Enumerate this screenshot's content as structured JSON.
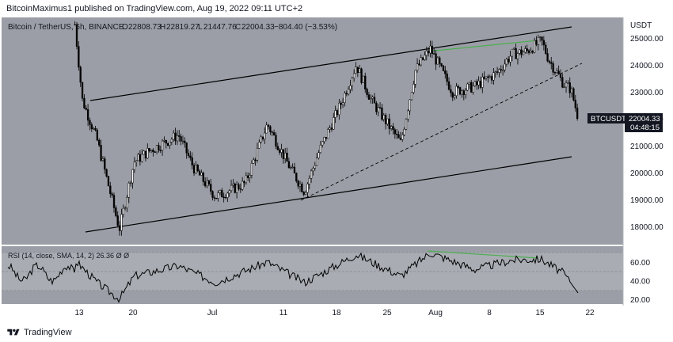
{
  "header": {
    "publisher_line": "BitcoinMaximus1 published on TradingView.com, Aug 19, 2022 09:11 UTC+2"
  },
  "legend": {
    "symbol": "Bitcoin / TetherUS, 6h, BINANCE",
    "open_label": "O",
    "open": "22808.73",
    "high_label": "H",
    "high": "22819.27",
    "low_label": "L",
    "low": "21447.76",
    "close_label": "C",
    "close": "22004.33",
    "change": "−804.40 (−3.53%)"
  },
  "price_axis": {
    "currency": "USDT",
    "ticks": [
      "25000.00",
      "24000.00",
      "23000.00",
      "22000.00",
      "21000.00",
      "20000.00",
      "19000.00",
      "18000.00"
    ]
  },
  "last_price_tag": {
    "symbol": "BTCUSDT",
    "price": "22004.33",
    "countdown": "04:48:15"
  },
  "rsi_panel": {
    "legend": "RSI (14, close, SMA, 14, 2)  26.36  Ø  Ø",
    "ticks": [
      "60.00",
      "40.00",
      "20.00"
    ]
  },
  "time_axis": {
    "ticks": [
      "13",
      "20",
      "Jul",
      "11",
      "18",
      "25",
      "Aug",
      "8",
      "15",
      "22"
    ]
  },
  "footer": {
    "brand": "TradingView"
  },
  "colors": {
    "panel_bg": "#9b9ea6",
    "rsi_band": "#a9acb3",
    "divergence": "#4caf50",
    "line": "#000000"
  },
  "chart_data": {
    "type": "candlestick",
    "title": "Bitcoin / TetherUS, 6h, BINANCE",
    "ylabel": "USDT",
    "ylim": [
      17500,
      25700
    ],
    "annotations": [
      "ascending parallel channel",
      "dashed ascending support line",
      "bearish divergence (green lines)"
    ],
    "price_path": [
      {
        "t": "Jun 12",
        "close": 25500
      },
      {
        "t": "Jun 13",
        "close": 22700
      },
      {
        "t": "Jun 15",
        "close": 21200
      },
      {
        "t": "Jun 18",
        "close": 17900
      },
      {
        "t": "Jun 20",
        "close": 20400
      },
      {
        "t": "Jun 22",
        "close": 20800
      },
      {
        "t": "Jun 26",
        "close": 21400
      },
      {
        "t": "Jun 28",
        "close": 20200
      },
      {
        "t": "Jul 1",
        "close": 19100
      },
      {
        "t": "Jul 5",
        "close": 19600
      },
      {
        "t": "Jul 8",
        "close": 21800
      },
      {
        "t": "Jul 11",
        "close": 20200
      },
      {
        "t": "Jul 13",
        "close": 19300
      },
      {
        "t": "Jul 15",
        "close": 20800
      },
      {
        "t": "Jul 18",
        "close": 22600
      },
      {
        "t": "Jul 20",
        "close": 24000
      },
      {
        "t": "Jul 22",
        "close": 22700
      },
      {
        "t": "Jul 26",
        "close": 21100
      },
      {
        "t": "Jul 28",
        "close": 23800
      },
      {
        "t": "Jul 30",
        "close": 24600
      },
      {
        "t": "Aug 2",
        "close": 23000
      },
      {
        "t": "Aug 5",
        "close": 23200
      },
      {
        "t": "Aug 8",
        "close": 23700
      },
      {
        "t": "Aug 10",
        "close": 24400
      },
      {
        "t": "Aug 12",
        "close": 24500
      },
      {
        "t": "Aug 14",
        "close": 24900
      },
      {
        "t": "Aug 15",
        "close": 24200
      },
      {
        "t": "Aug 17",
        "close": 23300
      },
      {
        "t": "Aug 18",
        "close": 23100
      },
      {
        "t": "Aug 19",
        "close": 22004.33
      }
    ],
    "rsi_ylim": [
      17,
      75
    ],
    "rsi_path": [
      {
        "t": "Jun 12",
        "v": 62
      },
      {
        "t": "Jun 15",
        "v": 38
      },
      {
        "t": "Jun 18",
        "v": 20
      },
      {
        "t": "Jun 20",
        "v": 45
      },
      {
        "t": "Jun 26",
        "v": 56
      },
      {
        "t": "Jul 1",
        "v": 38
      },
      {
        "t": "Jul 8",
        "v": 60
      },
      {
        "t": "Jul 13",
        "v": 38
      },
      {
        "t": "Jul 20",
        "v": 68
      },
      {
        "t": "Jul 26",
        "v": 45
      },
      {
        "t": "Jul 30",
        "v": 70
      },
      {
        "t": "Aug 5",
        "v": 52
      },
      {
        "t": "Aug 10",
        "v": 62
      },
      {
        "t": "Aug 14",
        "v": 63
      },
      {
        "t": "Aug 17",
        "v": 48
      },
      {
        "t": "Aug 19",
        "v": 26.36
      }
    ]
  }
}
